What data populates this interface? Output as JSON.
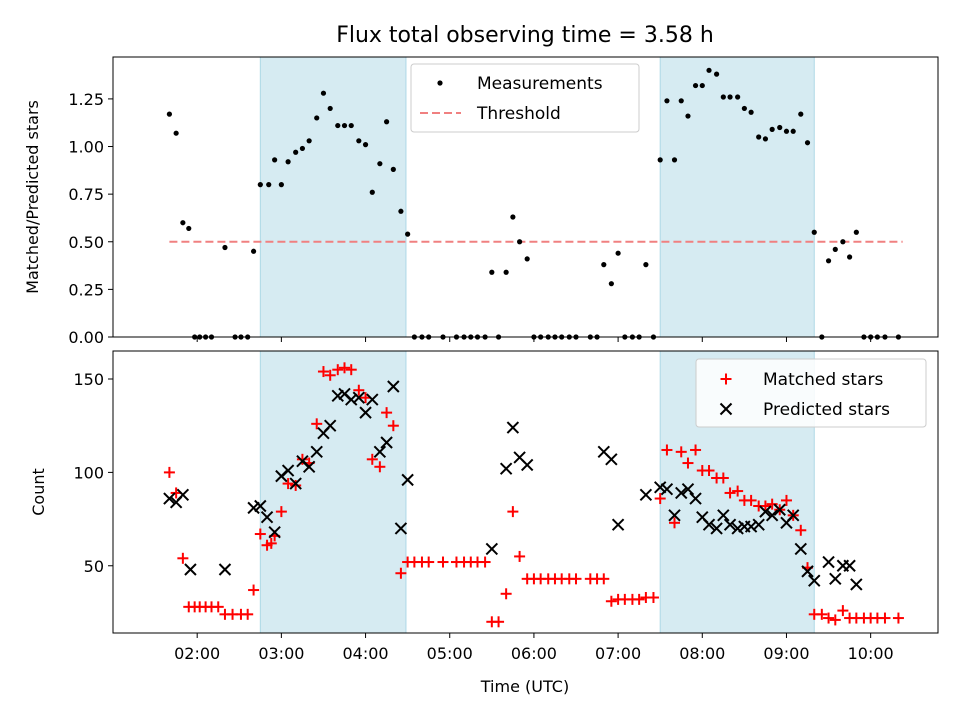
{
  "chart_data": {
    "type": "scatter",
    "title": "Flux total observing time = 3.58 h",
    "xlabel": "Time (UTC)",
    "x_tick_labels": [
      "02:00",
      "03:00",
      "04:00",
      "05:00",
      "06:00",
      "07:00",
      "08:00",
      "09:00",
      "10:00"
    ],
    "x_tick_values": [
      2,
      3,
      4,
      5,
      6,
      7,
      8,
      9,
      10
    ],
    "xlim": [
      1.0,
      10.8
    ],
    "shaded_intervals": [
      [
        2.75,
        4.48
      ],
      [
        7.5,
        9.33
      ]
    ],
    "top_panel": {
      "ylabel": "Matched/Predicted stars",
      "ylim": [
        0,
        1.47
      ],
      "y_tick_labels": [
        "0.00",
        "0.25",
        "0.50",
        "0.75",
        "1.00",
        "1.25"
      ],
      "y_tick_values": [
        0,
        0.25,
        0.5,
        0.75,
        1.0,
        1.25
      ],
      "legend": {
        "measurements": "Measurements",
        "threshold": "Threshold"
      },
      "threshold": {
        "value": 0.5,
        "x_range": [
          1.67,
          10.38
        ],
        "color": "#f08080"
      },
      "measurements": [
        [
          1.67,
          1.17
        ],
        [
          1.75,
          1.07
        ],
        [
          1.83,
          0.6
        ],
        [
          1.9,
          0.57
        ],
        [
          1.97,
          0
        ],
        [
          2.03,
          0
        ],
        [
          2.1,
          0
        ],
        [
          2.17,
          0
        ],
        [
          2.33,
          0.47
        ],
        [
          2.45,
          0
        ],
        [
          2.52,
          0
        ],
        [
          2.6,
          0
        ],
        [
          2.67,
          0.45
        ],
        [
          2.75,
          0.8
        ],
        [
          2.85,
          0.8
        ],
        [
          2.92,
          0.93
        ],
        [
          3.0,
          0.8
        ],
        [
          3.08,
          0.92
        ],
        [
          3.17,
          0.97
        ],
        [
          3.25,
          0.99
        ],
        [
          3.33,
          1.03
        ],
        [
          3.42,
          1.15
        ],
        [
          3.5,
          1.28
        ],
        [
          3.58,
          1.2
        ],
        [
          3.67,
          1.11
        ],
        [
          3.75,
          1.11
        ],
        [
          3.83,
          1.11
        ],
        [
          3.92,
          1.03
        ],
        [
          4.0,
          1.01
        ],
        [
          4.08,
          0.76
        ],
        [
          4.17,
          0.91
        ],
        [
          4.25,
          1.13
        ],
        [
          4.33,
          0.88
        ],
        [
          4.42,
          0.66
        ],
        [
          4.5,
          0.54
        ],
        [
          4.58,
          0
        ],
        [
          4.67,
          0
        ],
        [
          4.75,
          0
        ],
        [
          4.92,
          0
        ],
        [
          5.08,
          0
        ],
        [
          5.17,
          0
        ],
        [
          5.25,
          0
        ],
        [
          5.33,
          0
        ],
        [
          5.42,
          0
        ],
        [
          5.5,
          0.34
        ],
        [
          5.58,
          0
        ],
        [
          5.67,
          0.34
        ],
        [
          5.75,
          0.63
        ],
        [
          5.83,
          0.5
        ],
        [
          5.92,
          0.41
        ],
        [
          6.0,
          0
        ],
        [
          6.08,
          0
        ],
        [
          6.17,
          0
        ],
        [
          6.25,
          0
        ],
        [
          6.33,
          0
        ],
        [
          6.42,
          0
        ],
        [
          6.5,
          0
        ],
        [
          6.67,
          0
        ],
        [
          6.75,
          0
        ],
        [
          6.83,
          0.38
        ],
        [
          6.92,
          0.28
        ],
        [
          7.0,
          0.44
        ],
        [
          7.08,
          0
        ],
        [
          7.17,
          0
        ],
        [
          7.25,
          0
        ],
        [
          7.33,
          0.38
        ],
        [
          7.42,
          0
        ],
        [
          7.5,
          0.93
        ],
        [
          7.58,
          1.24
        ],
        [
          7.67,
          0.93
        ],
        [
          7.75,
          1.24
        ],
        [
          7.83,
          1.16
        ],
        [
          7.92,
          1.32
        ],
        [
          8.0,
          1.32
        ],
        [
          8.08,
          1.4
        ],
        [
          8.17,
          1.38
        ],
        [
          8.25,
          1.26
        ],
        [
          8.33,
          1.26
        ],
        [
          8.42,
          1.26
        ],
        [
          8.5,
          1.2
        ],
        [
          8.58,
          1.18
        ],
        [
          8.67,
          1.05
        ],
        [
          8.75,
          1.04
        ],
        [
          8.83,
          1.09
        ],
        [
          8.92,
          1.1
        ],
        [
          9.0,
          1.08
        ],
        [
          9.08,
          1.08
        ],
        [
          9.17,
          1.17
        ],
        [
          9.25,
          1.02
        ],
        [
          9.33,
          0.55
        ],
        [
          9.42,
          0
        ],
        [
          9.5,
          0.4
        ],
        [
          9.58,
          0.46
        ],
        [
          9.67,
          0.5
        ],
        [
          9.75,
          0.42
        ],
        [
          9.83,
          0.55
        ],
        [
          9.92,
          0
        ],
        [
          10.0,
          0
        ],
        [
          10.08,
          0
        ],
        [
          10.17,
          0
        ],
        [
          10.33,
          0
        ]
      ]
    },
    "bottom_panel": {
      "ylabel": "Count",
      "ylim": [
        14,
        165
      ],
      "y_tick_labels": [
        "50",
        "100",
        "150"
      ],
      "y_tick_values": [
        50,
        100,
        150
      ],
      "legend": {
        "matched": "Matched stars",
        "predicted": "Predicted stars"
      },
      "matched": [
        [
          1.67,
          100
        ],
        [
          1.75,
          89
        ],
        [
          1.83,
          54
        ],
        [
          1.9,
          28
        ],
        [
          1.97,
          28
        ],
        [
          2.03,
          28
        ],
        [
          2.1,
          28
        ],
        [
          2.17,
          28
        ],
        [
          2.25,
          28
        ],
        [
          2.33,
          24
        ],
        [
          2.42,
          24
        ],
        [
          2.52,
          24
        ],
        [
          2.6,
          24
        ],
        [
          2.67,
          37
        ],
        [
          2.75,
          67
        ],
        [
          2.83,
          61
        ],
        [
          2.88,
          62
        ],
        [
          2.92,
          66
        ],
        [
          3.0,
          79
        ],
        [
          3.08,
          94
        ],
        [
          3.17,
          93
        ],
        [
          3.25,
          107
        ],
        [
          3.33,
          105
        ],
        [
          3.42,
          126
        ],
        [
          3.5,
          154
        ],
        [
          3.58,
          152
        ],
        [
          3.67,
          155
        ],
        [
          3.75,
          156
        ],
        [
          3.83,
          155
        ],
        [
          3.92,
          144
        ],
        [
          4.0,
          140
        ],
        [
          4.08,
          107
        ],
        [
          4.17,
          103
        ],
        [
          4.25,
          132
        ],
        [
          4.33,
          125
        ],
        [
          4.42,
          46
        ],
        [
          4.5,
          52
        ],
        [
          4.58,
          52
        ],
        [
          4.67,
          52
        ],
        [
          4.75,
          52
        ],
        [
          4.92,
          52
        ],
        [
          5.08,
          52
        ],
        [
          5.17,
          52
        ],
        [
          5.25,
          52
        ],
        [
          5.33,
          52
        ],
        [
          5.42,
          52
        ],
        [
          5.5,
          20
        ],
        [
          5.58,
          20
        ],
        [
          5.67,
          35
        ],
        [
          5.75,
          79
        ],
        [
          5.83,
          55
        ],
        [
          5.92,
          43
        ],
        [
          6.0,
          43
        ],
        [
          6.08,
          43
        ],
        [
          6.17,
          43
        ],
        [
          6.25,
          43
        ],
        [
          6.33,
          43
        ],
        [
          6.42,
          43
        ],
        [
          6.5,
          43
        ],
        [
          6.67,
          43
        ],
        [
          6.75,
          43
        ],
        [
          6.83,
          43
        ],
        [
          6.92,
          31
        ],
        [
          7.0,
          32
        ],
        [
          7.08,
          32
        ],
        [
          7.17,
          32
        ],
        [
          7.25,
          32
        ],
        [
          7.33,
          33
        ],
        [
          7.42,
          33
        ],
        [
          7.5,
          86
        ],
        [
          7.58,
          112
        ],
        [
          7.67,
          73
        ],
        [
          7.75,
          111
        ],
        [
          7.83,
          105
        ],
        [
          7.92,
          112
        ],
        [
          8.0,
          101
        ],
        [
          8.08,
          101
        ],
        [
          8.17,
          97
        ],
        [
          8.25,
          97
        ],
        [
          8.33,
          89
        ],
        [
          8.42,
          90
        ],
        [
          8.5,
          85
        ],
        [
          8.58,
          85
        ],
        [
          8.67,
          82
        ],
        [
          8.75,
          82
        ],
        [
          8.83,
          83
        ],
        [
          8.92,
          80
        ],
        [
          9.0,
          85
        ],
        [
          9.08,
          77
        ],
        [
          9.17,
          69
        ],
        [
          9.25,
          49
        ],
        [
          9.33,
          24
        ],
        [
          9.42,
          24
        ],
        [
          9.5,
          22
        ],
        [
          9.58,
          21
        ],
        [
          9.67,
          26
        ],
        [
          9.75,
          22
        ],
        [
          9.83,
          22
        ],
        [
          9.92,
          22
        ],
        [
          10.0,
          22
        ],
        [
          10.08,
          22
        ],
        [
          10.17,
          22
        ],
        [
          10.33,
          22
        ]
      ],
      "predicted": [
        [
          1.67,
          86
        ],
        [
          1.75,
          84
        ],
        [
          1.83,
          88
        ],
        [
          1.92,
          48
        ],
        [
          2.33,
          48
        ],
        [
          2.67,
          81
        ],
        [
          2.75,
          82
        ],
        [
          2.83,
          76
        ],
        [
          2.92,
          68
        ],
        [
          3.0,
          98
        ],
        [
          3.08,
          101
        ],
        [
          3.17,
          94
        ],
        [
          3.25,
          106
        ],
        [
          3.33,
          103
        ],
        [
          3.42,
          111
        ],
        [
          3.5,
          121
        ],
        [
          3.58,
          125
        ],
        [
          3.67,
          141
        ],
        [
          3.75,
          142
        ],
        [
          3.83,
          139
        ],
        [
          3.92,
          140
        ],
        [
          4.0,
          132
        ],
        [
          4.08,
          139
        ],
        [
          4.17,
          111
        ],
        [
          4.25,
          116
        ],
        [
          4.33,
          146
        ],
        [
          4.42,
          70
        ],
        [
          4.5,
          96
        ],
        [
          5.5,
          59
        ],
        [
          5.67,
          102
        ],
        [
          5.75,
          124
        ],
        [
          5.83,
          108
        ],
        [
          5.92,
          104
        ],
        [
          6.83,
          111
        ],
        [
          6.92,
          107
        ],
        [
          7.0,
          72
        ],
        [
          7.33,
          88
        ],
        [
          7.5,
          92
        ],
        [
          7.58,
          91
        ],
        [
          7.67,
          77
        ],
        [
          7.75,
          89
        ],
        [
          7.83,
          91
        ],
        [
          7.92,
          86
        ],
        [
          8.0,
          76
        ],
        [
          8.08,
          72
        ],
        [
          8.17,
          70
        ],
        [
          8.25,
          77
        ],
        [
          8.33,
          72
        ],
        [
          8.42,
          70
        ],
        [
          8.5,
          71
        ],
        [
          8.58,
          71
        ],
        [
          8.67,
          72
        ],
        [
          8.75,
          79
        ],
        [
          8.83,
          77
        ],
        [
          8.92,
          80
        ],
        [
          9.0,
          73
        ],
        [
          9.08,
          77
        ],
        [
          9.17,
          59
        ],
        [
          9.25,
          47
        ],
        [
          9.33,
          42
        ],
        [
          9.5,
          52
        ],
        [
          9.58,
          43
        ],
        [
          9.67,
          50
        ],
        [
          9.75,
          50
        ],
        [
          9.83,
          40
        ]
      ]
    }
  }
}
